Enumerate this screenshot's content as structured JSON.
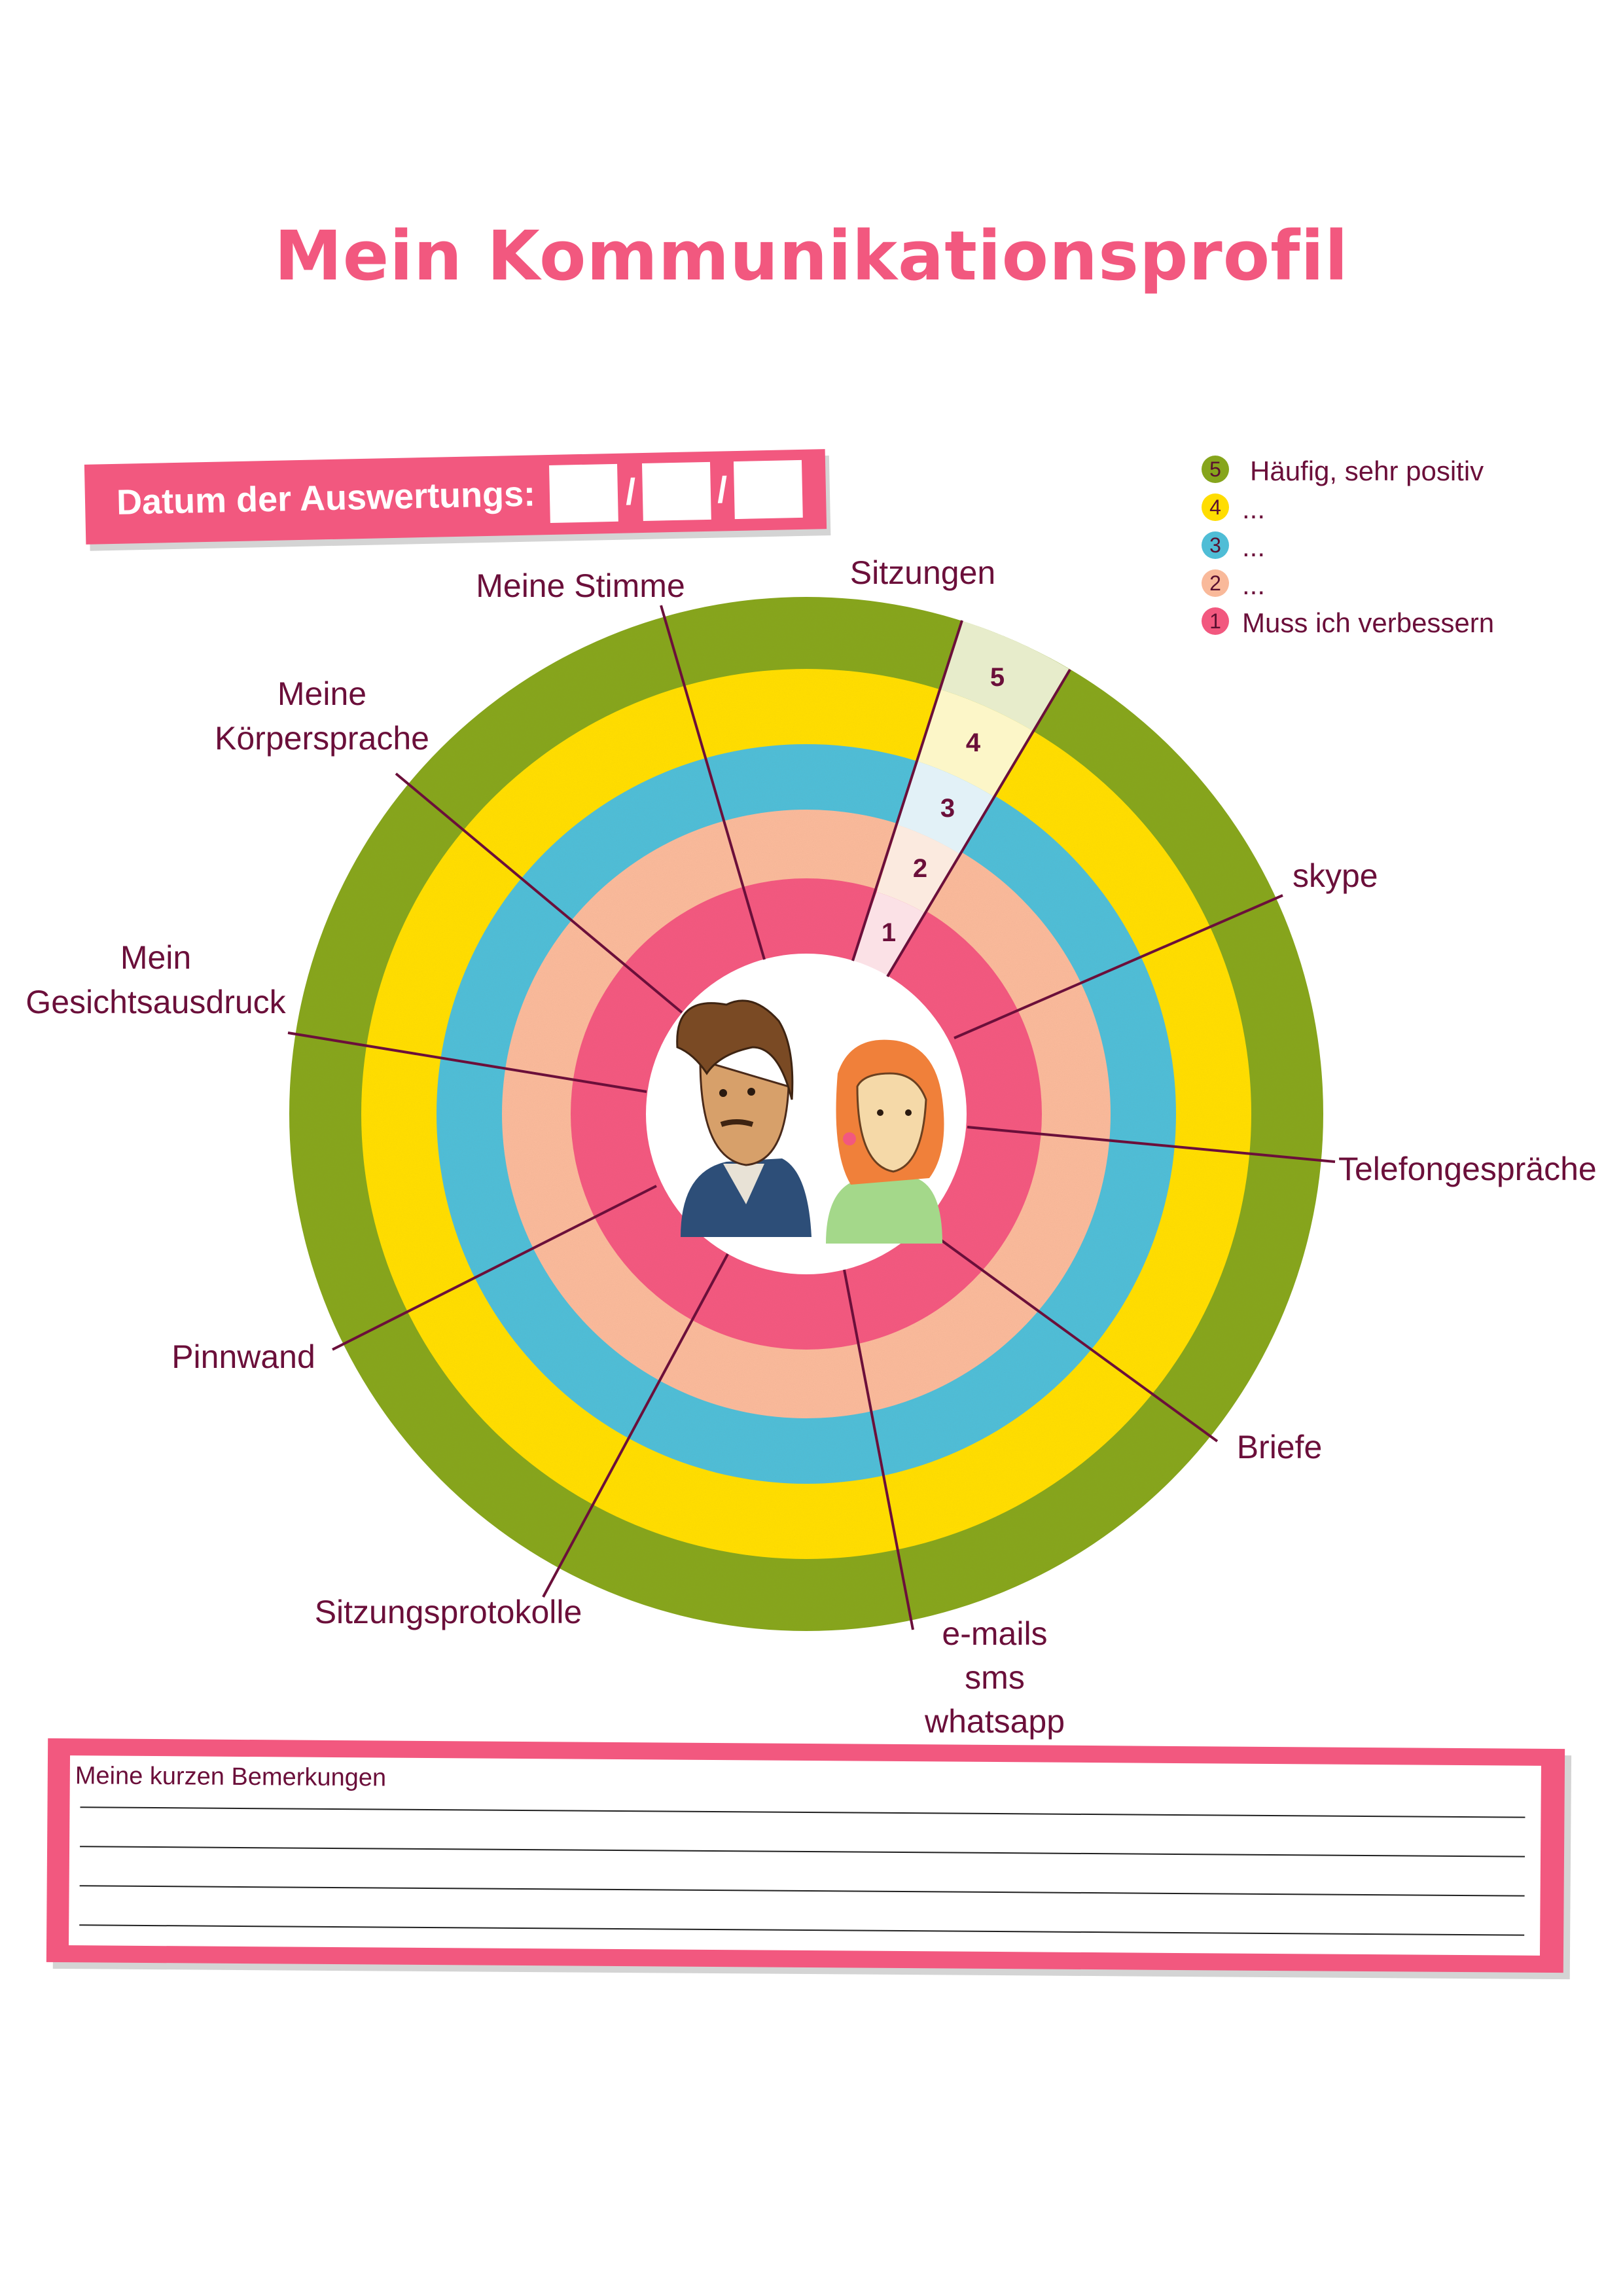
{
  "title": "Mein Kommunikationsprofil",
  "date": {
    "label": "Datum der Auswertungs:",
    "separator": "/"
  },
  "legend": [
    {
      "number": "5",
      "text": "Häufig, sehr positiv",
      "color": "#86a51c"
    },
    {
      "number": "4",
      "text": "...",
      "color": "#ffdd00"
    },
    {
      "number": "3",
      "text": "...",
      "color": "#4fbdd6"
    },
    {
      "number": "2",
      "text": "...",
      "color": "#f9b99a"
    },
    {
      "number": "1",
      "text": "Muss ich verbessern",
      "color": "#f2587f"
    }
  ],
  "rings": [
    {
      "level": "1",
      "color": "#f2587f"
    },
    {
      "level": "2",
      "color": "#f9b99a"
    },
    {
      "level": "3",
      "color": "#4fbdd6"
    },
    {
      "level": "4",
      "color": "#ffdd00"
    },
    {
      "level": "5",
      "color": "#86a51c"
    }
  ],
  "highlight_wedge": {
    "axis": "Sitzungen",
    "levels": [
      "1",
      "2",
      "3",
      "4",
      "5"
    ],
    "tints": [
      "#fbe1e6",
      "#fbeadf",
      "#e2f1f7",
      "#fcf6c8",
      "#e7eccb"
    ]
  },
  "axes": {
    "meine_stimme": "Meine Stimme",
    "sitzungen": "Sitzungen",
    "koerpersprache_1": "Meine",
    "koerpersprache_2": "Körpersprache",
    "gesicht_1": "Mein",
    "gesicht_2": "Gesichtsausdruck",
    "skype": "skype",
    "telefon": "Telefongespräche",
    "pinnwand": "Pinnwand",
    "briefe": "Briefe",
    "protokolle": "Sitzungsprotokolle",
    "emails_1": "e-mails",
    "emails_2": "sms",
    "emails_3": "whatsapp"
  },
  "notes": {
    "label": "Meine kurzen Bemerkungen"
  },
  "colors": {
    "accent": "#f2587f",
    "text": "#6b0f3a",
    "spoke": "#6b0f3a"
  }
}
